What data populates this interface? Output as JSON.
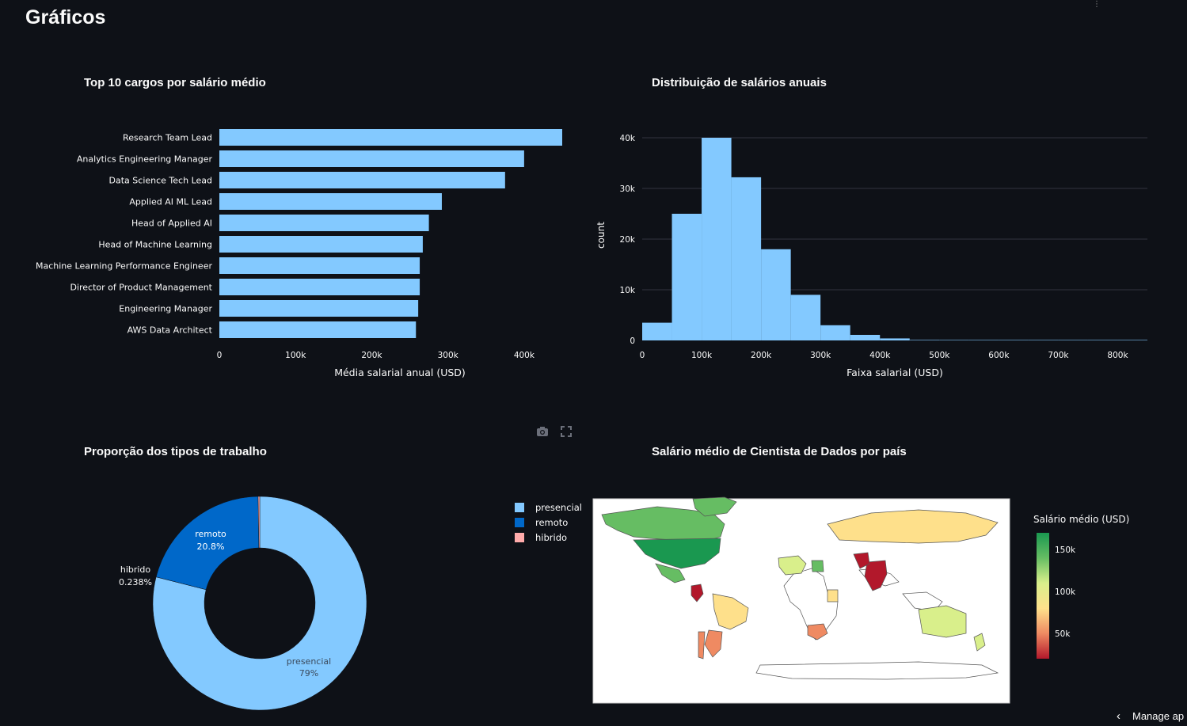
{
  "page": {
    "title": "Gráficos",
    "manage_app_label": "Manage ap",
    "corner_icon": "user-menu-icon"
  },
  "modebar": {
    "icons": [
      "camera-icon",
      "fullscreen-icon"
    ]
  },
  "colors": {
    "bar": "#83c9ff",
    "pie_presencial": "#83c9ff",
    "pie_remoto": "#0068c9",
    "pie_hibrido": "#ffabab",
    "bg": "#0e1117"
  },
  "chart_data": [
    {
      "id": "top10",
      "type": "bar",
      "orientation": "horizontal",
      "title": "Top 10 cargos por salário médio",
      "xlabel": "Média salarial anual (USD)",
      "ylabel": "",
      "categories": [
        "Research Team Lead",
        "Analytics Engineering Manager",
        "Data Science Tech Lead",
        "Applied AI ML Lead",
        "Head of Applied AI",
        "Head of Machine Learning",
        "Machine Learning Performance Engineer",
        "Director of Product Management",
        "Engineering Manager",
        "AWS Data Architect"
      ],
      "values": [
        450000,
        400000,
        375000,
        292000,
        275000,
        267000,
        263000,
        263000,
        261000,
        258000
      ],
      "xlim": [
        0,
        450000
      ],
      "xticks": [
        0,
        100000,
        200000,
        300000,
        400000
      ],
      "xtick_labels": [
        "0",
        "100k",
        "200k",
        "300k",
        "400k"
      ],
      "grid": false
    },
    {
      "id": "hist",
      "type": "bar",
      "subtype": "histogram",
      "title": "Distribuição de salários anuais",
      "xlabel": "Faixa salarial (USD)",
      "ylabel": "count",
      "bin_edges": [
        0,
        50000,
        100000,
        150000,
        200000,
        250000,
        300000,
        350000,
        400000,
        450000,
        500000,
        550000,
        600000,
        650000,
        700000,
        750000,
        800000,
        850000
      ],
      "values": [
        3500,
        25000,
        40000,
        32200,
        18000,
        9000,
        3000,
        1100,
        400,
        100,
        40,
        20,
        15,
        10,
        10,
        5,
        5
      ],
      "xlim": [
        0,
        850000
      ],
      "ylim": [
        0,
        40000
      ],
      "xticks": [
        0,
        100000,
        200000,
        300000,
        400000,
        500000,
        600000,
        700000,
        800000
      ],
      "xtick_labels": [
        "0",
        "100k",
        "200k",
        "300k",
        "400k",
        "500k",
        "600k",
        "700k",
        "800k"
      ],
      "yticks": [
        0,
        10000,
        20000,
        30000,
        40000
      ],
      "ytick_labels": [
        "0",
        "10k",
        "20k",
        "30k",
        "40k"
      ],
      "grid": true
    },
    {
      "id": "pie",
      "type": "pie",
      "hole": true,
      "title": "Proporção dos tipos de trabalho",
      "labels": [
        "presencial",
        "remoto",
        "hibrido"
      ],
      "values": [
        78.962,
        20.8,
        0.238
      ],
      "percent_labels": [
        "79%",
        "20.8%",
        "0.238%"
      ],
      "legend": "right"
    },
    {
      "id": "map",
      "type": "choropleth",
      "title": "Salário médio de Cientista de Dados por país",
      "colorbar_title": "Salário médio (USD)",
      "colorbar_ticks": [
        50000,
        100000,
        150000
      ],
      "colorbar_tick_labels": [
        "50k",
        "100k",
        "150k"
      ],
      "colorscale": [
        "#b2182b",
        "#ef8a62",
        "#fee08b",
        "#d9ef8b",
        "#66bd63",
        "#1a9850"
      ],
      "range": [
        20000,
        170000
      ],
      "regions": [
        {
          "name": "Canada",
          "value": 125000
        },
        {
          "name": "United States",
          "value": 158000
        },
        {
          "name": "Mexico",
          "value": 135000
        },
        {
          "name": "Colombia",
          "value": 28000
        },
        {
          "name": "Brazil",
          "value": 85000
        },
        {
          "name": "Argentina",
          "value": 55000
        },
        {
          "name": "Chile",
          "value": 55000
        },
        {
          "name": "Greenland",
          "value": 150000
        },
        {
          "name": "Russia",
          "value": 80000
        },
        {
          "name": "Algeria",
          "value": 110000
        },
        {
          "name": "Egypt",
          "value": 130000
        },
        {
          "name": "South Africa",
          "value": 55000
        },
        {
          "name": "Kenya",
          "value": 70000
        },
        {
          "name": "India",
          "value": 30000
        },
        {
          "name": "Pakistan",
          "value": 22000
        },
        {
          "name": "Australia",
          "value": 110000
        },
        {
          "name": "New Zealand",
          "value": 120000
        }
      ]
    }
  ]
}
